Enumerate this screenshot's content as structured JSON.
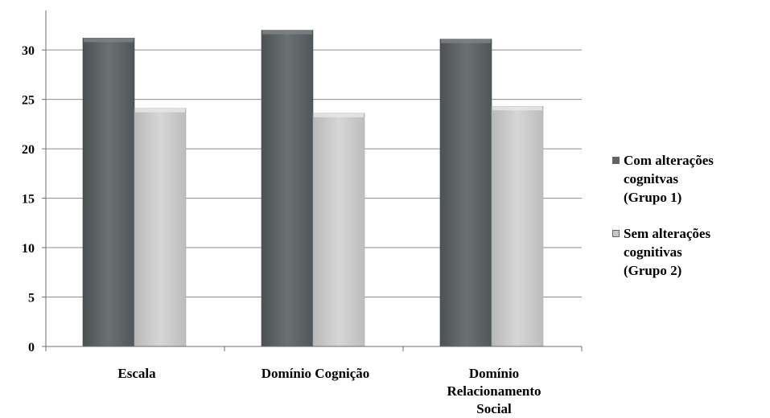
{
  "chart_data": {
    "type": "bar",
    "title": "",
    "xlabel": "",
    "ylabel": "",
    "ylim": [
      0,
      34
    ],
    "yticks": [
      0,
      5,
      10,
      15,
      20,
      25,
      30
    ],
    "grid": true,
    "legend_position": "right",
    "categories": [
      "Escala",
      "Domínio Cognição",
      "Domínio Relacionamento Social"
    ],
    "category_lines": [
      [
        "Escala"
      ],
      [
        "Domínio Cognição"
      ],
      [
        "Domínio",
        "Relacionamento",
        "Social"
      ]
    ],
    "series": [
      {
        "name": "Com alterações cognitvas (Grupo 1)",
        "name_lines": [
          "Com alterações",
          "cognitvas",
          "(Grupo 1)"
        ],
        "color": "#5f6566",
        "values": [
          31.2,
          32.0,
          31.1
        ]
      },
      {
        "name": "Sem alterações cognitivas (Grupo 2)",
        "name_lines": [
          "Sem alterações",
          "cognitivas",
          "(Grupo 2)"
        ],
        "color": "#c8c8c8",
        "values": [
          24.1,
          23.6,
          24.3
        ]
      }
    ]
  }
}
